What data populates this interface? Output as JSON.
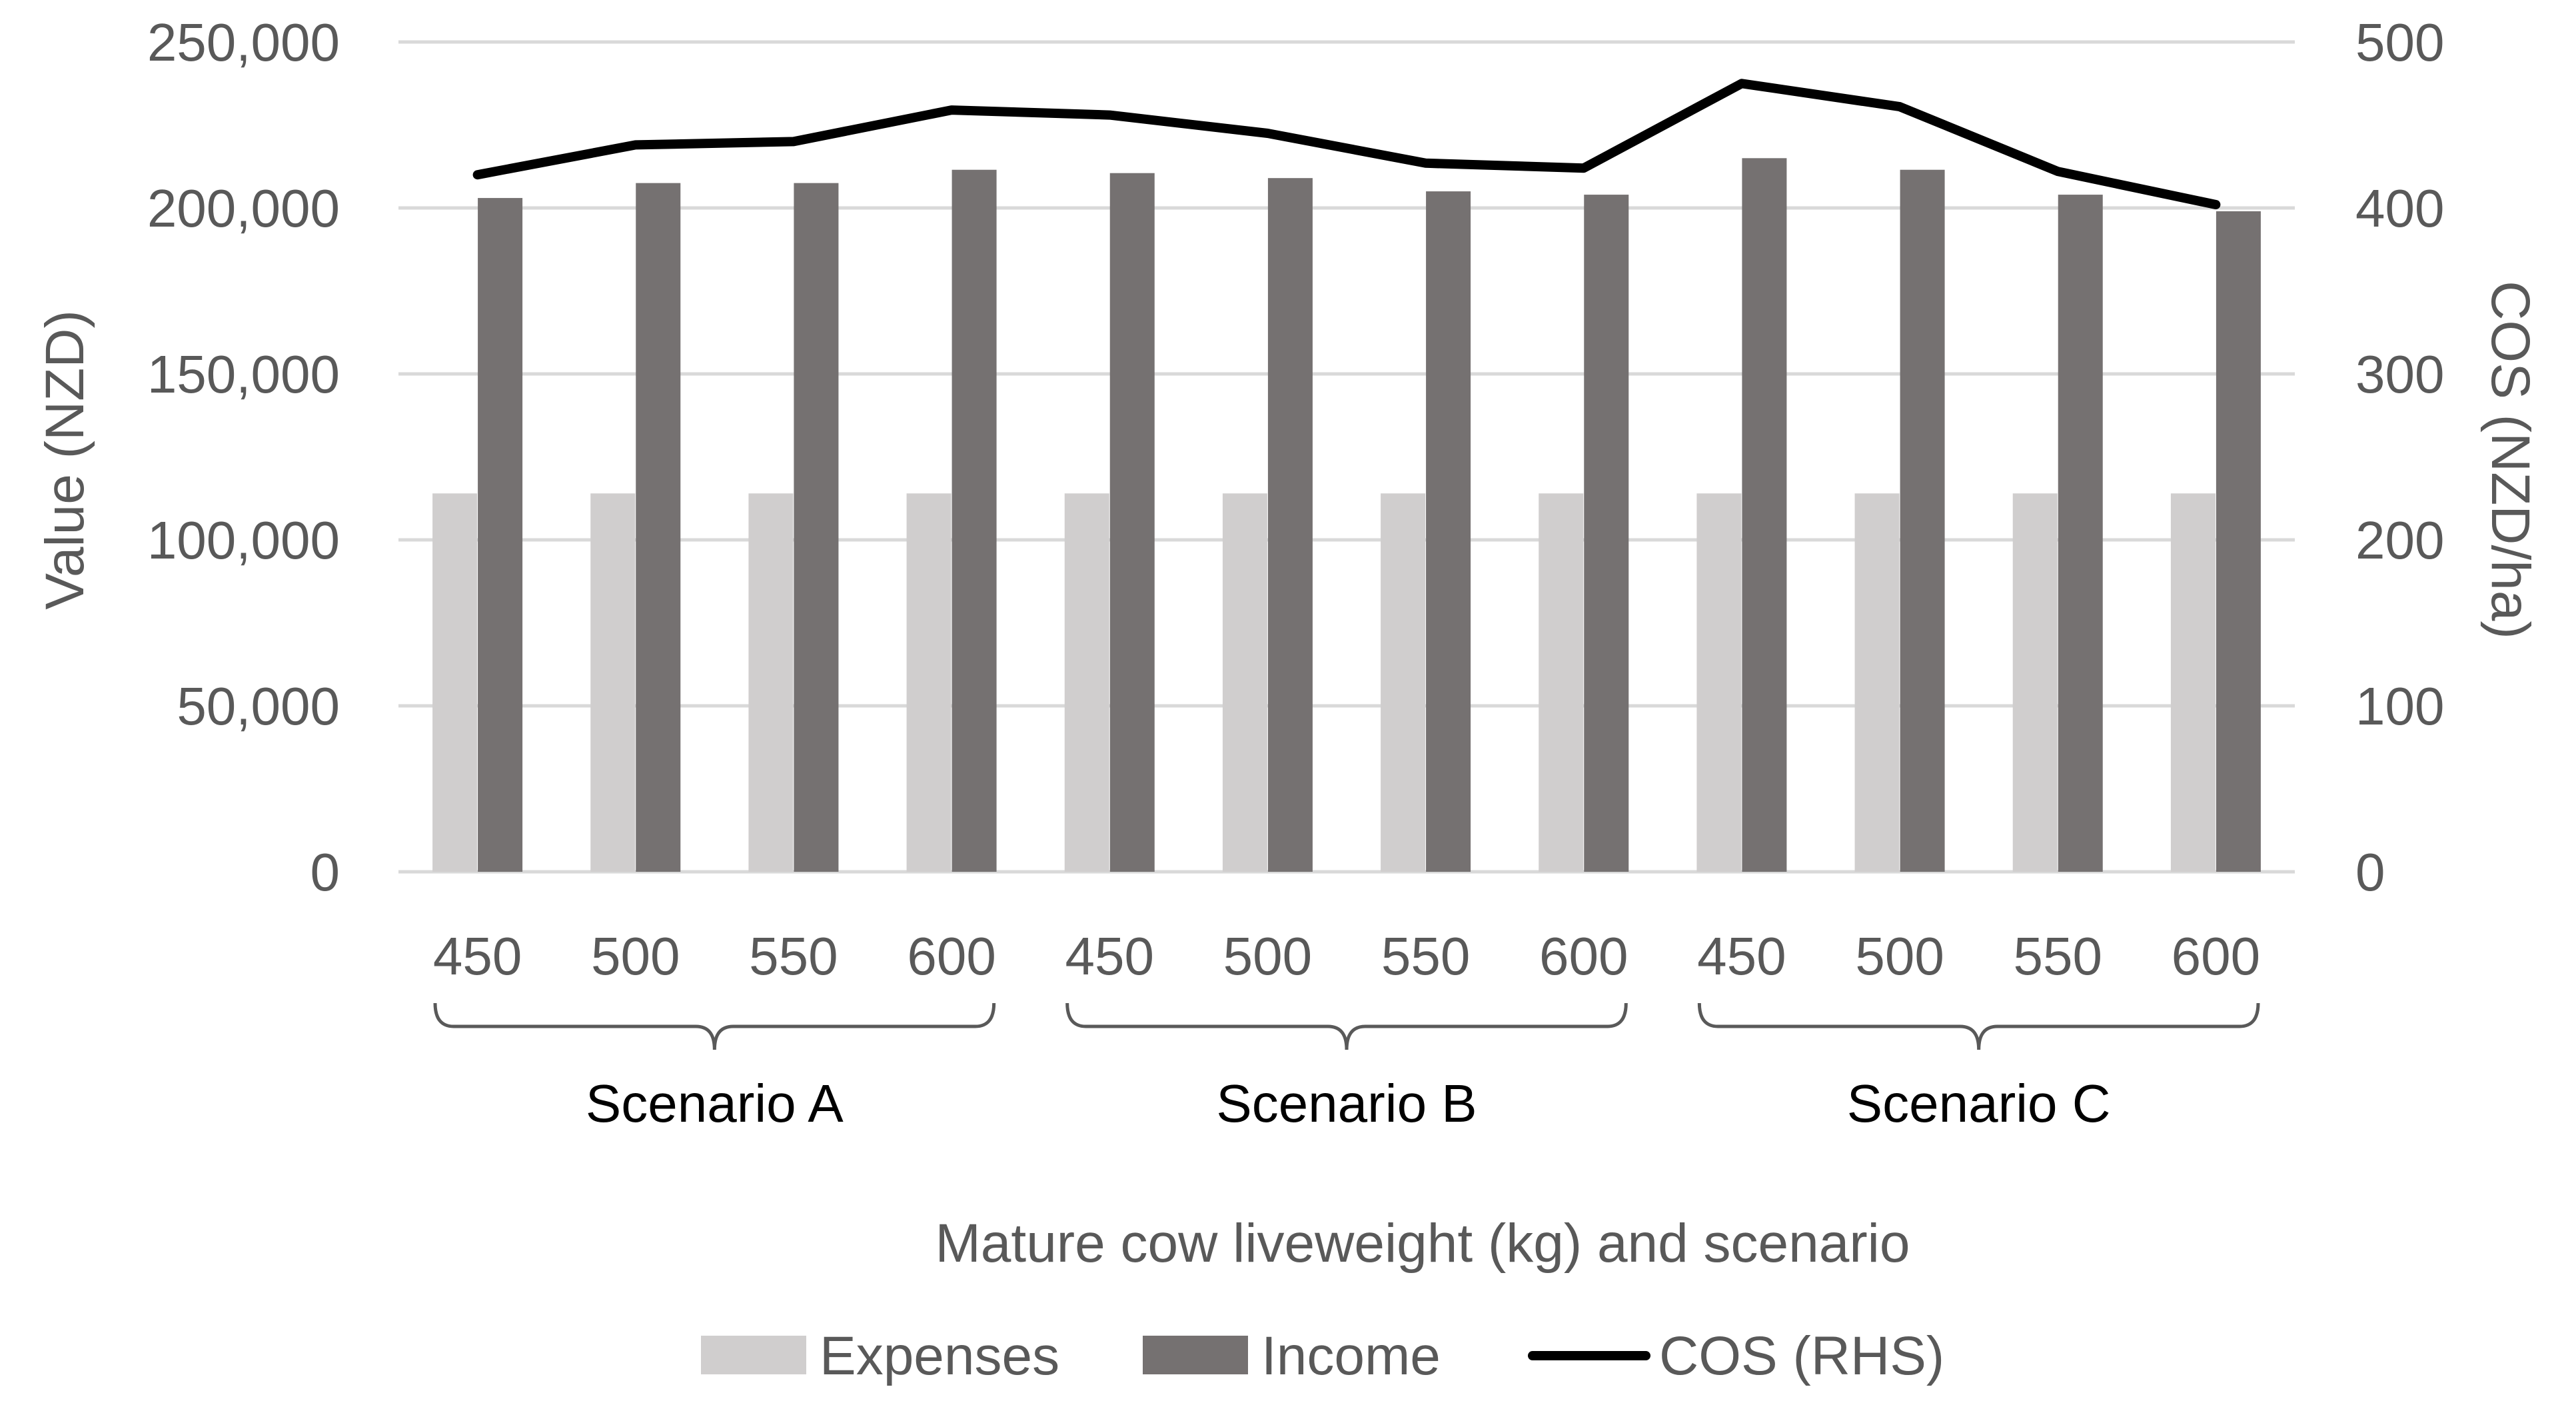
{
  "chart_data": {
    "type": "bar",
    "categories": [
      "450",
      "500",
      "550",
      "600",
      "450",
      "500",
      "550",
      "600",
      "450",
      "500",
      "550",
      "600"
    ],
    "groups": [
      {
        "label": "Scenario A",
        "start": 0,
        "end": 3
      },
      {
        "label": "Scenario B",
        "start": 4,
        "end": 7
      },
      {
        "label": "Scenario C",
        "start": 8,
        "end": 11
      }
    ],
    "series": [
      {
        "name": "Expenses",
        "axis": "left",
        "kind": "bar",
        "color": "#d0cece",
        "values": [
          114000,
          114000,
          114000,
          114000,
          114000,
          114000,
          114000,
          114000,
          114000,
          114000,
          114000,
          114000
        ]
      },
      {
        "name": "Income",
        "axis": "left",
        "kind": "bar",
        "color": "#757171",
        "values": [
          203000,
          207500,
          207500,
          211500,
          210500,
          209000,
          205000,
          204000,
          215000,
          211500,
          204000,
          199000
        ]
      },
      {
        "name": "COS (RHS)",
        "axis": "right",
        "kind": "line",
        "color": "#000000",
        "values": [
          420,
          438,
          440,
          459,
          456,
          445,
          427,
          424,
          475,
          461,
          422,
          402
        ]
      }
    ],
    "xlabel": "Mature cow liveweight (kg) and scenario",
    "ylabel": "Value (NZD)",
    "y2label": "COS (NZD/ha)",
    "ylim": [
      0,
      250000
    ],
    "y2lim": [
      0,
      500
    ],
    "yticks": [
      "0",
      "50,000",
      "100,000",
      "150,000",
      "200,000",
      "250,000"
    ],
    "y2ticks": [
      "0",
      "100",
      "200",
      "300",
      "400",
      "500"
    ],
    "grid": true,
    "legend_position": "bottom"
  }
}
